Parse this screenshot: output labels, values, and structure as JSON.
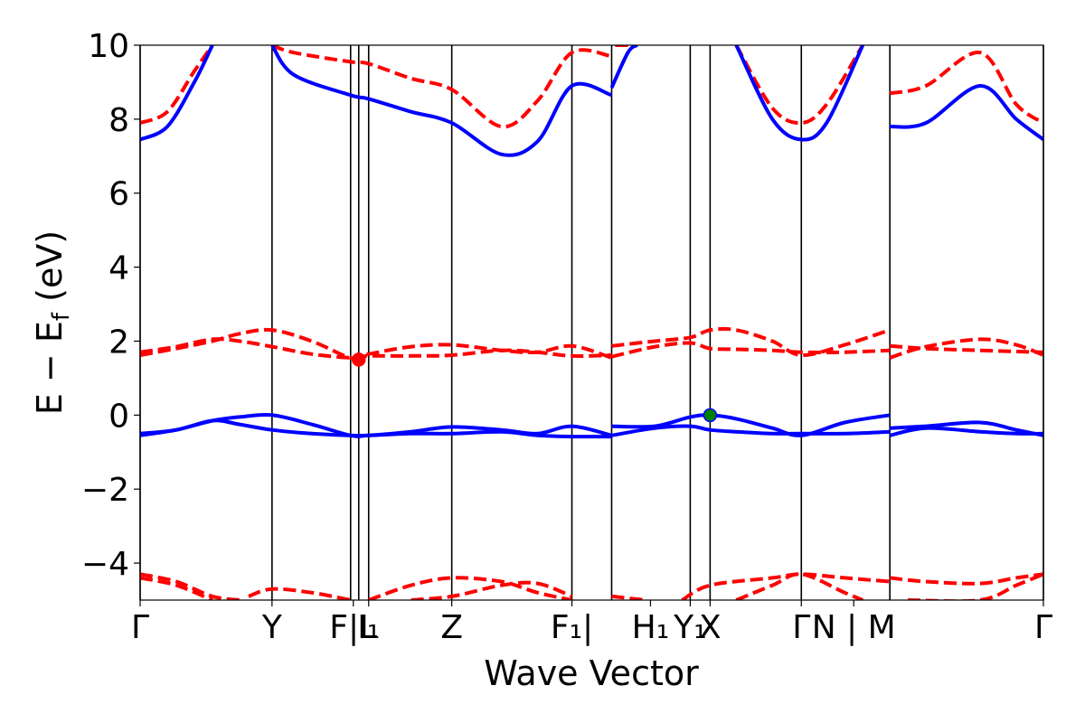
{
  "chart_data": {
    "type": "line",
    "xlabel": "Wave Vector",
    "ylabel": "E − E",
    "ylabel_sub": "f",
    "ylabel_unit": "(eV)",
    "ylim": [
      -5,
      10
    ],
    "xlim": [
      0,
      1
    ],
    "yticks": [
      -4,
      -2,
      0,
      2,
      4,
      6,
      8,
      10
    ],
    "ytick_labels": [
      "−4",
      "−2",
      "0",
      "2",
      "4",
      "6",
      "8",
      "10"
    ],
    "kpoint_positions": [
      0.0,
      0.146,
      0.233,
      0.242,
      0.253,
      0.345,
      0.478,
      0.522,
      0.609,
      0.631,
      0.732,
      0.83,
      1.0
    ],
    "kpoint_labels": [
      {
        "x": 0.0,
        "text": "Γ"
      },
      {
        "x": 0.146,
        "text": "Y"
      },
      {
        "x": 0.236,
        "text": "F|L"
      },
      {
        "x": 0.253,
        "text": "I₁"
      },
      {
        "x": 0.345,
        "text": "Z"
      },
      {
        "x": 0.478,
        "text": "F₁|"
      },
      {
        "x": 0.565,
        "text": "H₁"
      },
      {
        "x": 0.609,
        "text": "Y₁"
      },
      {
        "x": 0.631,
        "text": "X"
      },
      {
        "x": 0.732,
        "text": "Γ"
      },
      {
        "x": 0.79,
        "text": "N | M"
      },
      {
        "x": 1.0,
        "text": "Γ"
      }
    ],
    "series": [
      {
        "name": "conduction band (dashed)",
        "color": "#ff0000",
        "style": "dashed",
        "segments": [
          [
            [
              0.0,
              1.62
            ],
            [
              0.04,
              1.8
            ],
            [
              0.08,
              2.0
            ],
            [
              0.11,
              2.2
            ],
            [
              0.146,
              2.3
            ],
            [
              0.19,
              2.0
            ],
            [
              0.233,
              1.55
            ],
            [
              0.253,
              1.65
            ],
            [
              0.3,
              1.85
            ],
            [
              0.345,
              1.9
            ],
            [
              0.4,
              1.75
            ],
            [
              0.44,
              1.7
            ],
            [
              0.478,
              1.87
            ],
            [
              0.522,
              1.55
            ]
          ],
          [
            [
              0.0,
              1.7
            ],
            [
              0.04,
              1.85
            ],
            [
              0.08,
              2.05
            ],
            [
              0.11,
              2.0
            ],
            [
              0.146,
              1.85
            ],
            [
              0.19,
              1.65
            ],
            [
              0.233,
              1.55
            ],
            [
              0.253,
              1.6
            ],
            [
              0.3,
              1.6
            ],
            [
              0.345,
              1.62
            ],
            [
              0.4,
              1.75
            ],
            [
              0.44,
              1.7
            ],
            [
              0.478,
              1.6
            ],
            [
              0.522,
              1.62
            ]
          ],
          [
            [
              0.522,
              1.87
            ],
            [
              0.57,
              2.0
            ],
            [
              0.609,
              2.1
            ],
            [
              0.631,
              2.3
            ],
            [
              0.66,
              2.3
            ],
            [
              0.7,
              2.0
            ],
            [
              0.732,
              1.62
            ],
            [
              0.78,
              1.9
            ],
            [
              0.83,
              2.3
            ]
          ],
          [
            [
              0.522,
              1.58
            ],
            [
              0.57,
              1.85
            ],
            [
              0.609,
              1.95
            ],
            [
              0.631,
              1.8
            ],
            [
              0.66,
              1.78
            ],
            [
              0.7,
              1.75
            ],
            [
              0.732,
              1.7
            ],
            [
              0.78,
              1.7
            ],
            [
              0.83,
              1.75
            ]
          ],
          [
            [
              0.83,
              1.55
            ],
            [
              0.87,
              1.85
            ],
            [
              0.93,
              2.05
            ],
            [
              0.97,
              1.9
            ],
            [
              1.0,
              1.62
            ]
          ],
          [
            [
              0.83,
              1.87
            ],
            [
              0.87,
              1.8
            ],
            [
              0.93,
              1.75
            ],
            [
              0.97,
              1.72
            ],
            [
              1.0,
              1.7
            ]
          ],
          [
            [
              0.0,
              7.9
            ],
            [
              0.03,
              8.2
            ],
            [
              0.06,
              9.3
            ],
            [
              0.08,
              10.0
            ]
          ],
          [
            [
              0.146,
              10.0
            ],
            [
              0.17,
              9.8
            ],
            [
              0.233,
              9.55
            ],
            [
              0.253,
              9.5
            ],
            [
              0.3,
              9.1
            ],
            [
              0.345,
              8.8
            ],
            [
              0.4,
              7.8
            ],
            [
              0.44,
              8.5
            ],
            [
              0.478,
              9.8
            ],
            [
              0.522,
              9.7
            ]
          ],
          [
            [
              0.54,
              10.0
            ],
            [
              0.52,
              10.0
            ]
          ],
          [
            [
              0.66,
              10.0
            ],
            [
              0.7,
              8.3
            ],
            [
              0.732,
              7.9
            ],
            [
              0.76,
              8.4
            ],
            [
              0.8,
              10.0
            ]
          ],
          [
            [
              0.83,
              8.7
            ],
            [
              0.87,
              8.9
            ],
            [
              0.93,
              9.8
            ],
            [
              0.97,
              8.4
            ],
            [
              1.0,
              7.9
            ]
          ],
          [
            [
              0.0,
              -4.3
            ],
            [
              0.04,
              -4.5
            ],
            [
              0.08,
              -4.9
            ],
            [
              0.11,
              -5.0
            ]
          ],
          [
            [
              0.0,
              -4.4
            ],
            [
              0.04,
              -4.6
            ],
            [
              0.08,
              -5.0
            ]
          ],
          [
            [
              0.12,
              -4.9
            ],
            [
              0.146,
              -4.7
            ],
            [
              0.19,
              -4.8
            ],
            [
              0.233,
              -5.0
            ]
          ],
          [
            [
              0.253,
              -5.0
            ],
            [
              0.3,
              -4.6
            ],
            [
              0.345,
              -4.4
            ],
            [
              0.4,
              -4.5
            ],
            [
              0.44,
              -4.8
            ],
            [
              0.478,
              -5.0
            ]
          ],
          [
            [
              0.3,
              -5.0
            ],
            [
              0.345,
              -4.9
            ],
            [
              0.4,
              -4.6
            ],
            [
              0.44,
              -4.55
            ],
            [
              0.478,
              -4.9
            ]
          ],
          [
            [
              0.522,
              -4.9
            ],
            [
              0.56,
              -5.0
            ]
          ],
          [
            [
              0.6,
              -5.0
            ],
            [
              0.631,
              -4.6
            ],
            [
              0.7,
              -4.4
            ],
            [
              0.732,
              -4.3
            ],
            [
              0.78,
              -4.4
            ],
            [
              0.83,
              -4.5
            ]
          ],
          [
            [
              0.66,
              -5.0
            ],
            [
              0.7,
              -4.6
            ],
            [
              0.732,
              -4.3
            ],
            [
              0.78,
              -4.8
            ],
            [
              0.8,
              -5.0
            ]
          ],
          [
            [
              0.83,
              -4.4
            ],
            [
              0.87,
              -4.5
            ],
            [
              0.93,
              -4.55
            ],
            [
              0.97,
              -4.4
            ],
            [
              1.0,
              -4.3
            ]
          ],
          [
            [
              0.85,
              -5.0
            ],
            [
              0.93,
              -5.0
            ],
            [
              0.97,
              -4.6
            ],
            [
              1.0,
              -4.3
            ]
          ]
        ]
      },
      {
        "name": "valence band (solid)",
        "color": "#0000ff",
        "style": "solid",
        "segments": [
          [
            [
              0.0,
              -0.55
            ],
            [
              0.04,
              -0.4
            ],
            [
              0.08,
              -0.15
            ],
            [
              0.11,
              -0.05
            ],
            [
              0.146,
              -0.0
            ],
            [
              0.19,
              -0.25
            ],
            [
              0.233,
              -0.55
            ],
            [
              0.253,
              -0.55
            ],
            [
              0.3,
              -0.45
            ],
            [
              0.345,
              -0.32
            ],
            [
              0.4,
              -0.4
            ],
            [
              0.44,
              -0.5
            ],
            [
              0.478,
              -0.3
            ],
            [
              0.522,
              -0.55
            ]
          ],
          [
            [
              0.0,
              -0.5
            ],
            [
              0.04,
              -0.4
            ],
            [
              0.08,
              -0.15
            ],
            [
              0.11,
              -0.25
            ],
            [
              0.146,
              -0.4
            ],
            [
              0.19,
              -0.5
            ],
            [
              0.233,
              -0.55
            ],
            [
              0.253,
              -0.55
            ],
            [
              0.3,
              -0.5
            ],
            [
              0.345,
              -0.5
            ],
            [
              0.4,
              -0.45
            ],
            [
              0.44,
              -0.55
            ],
            [
              0.478,
              -0.58
            ],
            [
              0.522,
              -0.58
            ]
          ],
          [
            [
              0.522,
              -0.3
            ],
            [
              0.57,
              -0.3
            ],
            [
              0.609,
              -0.05
            ],
            [
              0.631,
              0.0
            ],
            [
              0.66,
              -0.1
            ],
            [
              0.7,
              -0.35
            ],
            [
              0.732,
              -0.55
            ],
            [
              0.78,
              -0.2
            ],
            [
              0.83,
              0.0
            ]
          ],
          [
            [
              0.522,
              -0.55
            ],
            [
              0.57,
              -0.35
            ],
            [
              0.609,
              -0.3
            ],
            [
              0.631,
              -0.4
            ],
            [
              0.66,
              -0.45
            ],
            [
              0.7,
              -0.5
            ],
            [
              0.732,
              -0.5
            ],
            [
              0.78,
              -0.5
            ],
            [
              0.83,
              -0.45
            ]
          ],
          [
            [
              0.83,
              -0.35
            ],
            [
              0.87,
              -0.3
            ],
            [
              0.93,
              -0.2
            ],
            [
              0.97,
              -0.4
            ],
            [
              1.0,
              -0.55
            ]
          ],
          [
            [
              0.83,
              -0.55
            ],
            [
              0.87,
              -0.35
            ],
            [
              0.93,
              -0.45
            ],
            [
              0.97,
              -0.5
            ],
            [
              1.0,
              -0.5
            ]
          ],
          [
            [
              0.0,
              7.45
            ],
            [
              0.03,
              7.8
            ],
            [
              0.06,
              9.0
            ],
            [
              0.08,
              10.0
            ]
          ],
          [
            [
              0.146,
              10.0
            ],
            [
              0.17,
              9.2
            ],
            [
              0.233,
              8.65
            ],
            [
              0.253,
              8.55
            ],
            [
              0.3,
              8.2
            ],
            [
              0.345,
              7.9
            ],
            [
              0.4,
              7.05
            ],
            [
              0.44,
              7.4
            ],
            [
              0.478,
              8.9
            ],
            [
              0.522,
              8.65
            ]
          ],
          [
            [
              0.522,
              8.85
            ],
            [
              0.54,
              9.8
            ],
            [
              0.55,
              10.0
            ]
          ],
          [
            [
              0.66,
              10.0
            ],
            [
              0.7,
              8.0
            ],
            [
              0.732,
              7.45
            ],
            [
              0.76,
              7.9
            ],
            [
              0.8,
              10.0
            ]
          ],
          [
            [
              0.83,
              7.8
            ],
            [
              0.87,
              7.9
            ],
            [
              0.93,
              8.9
            ],
            [
              0.97,
              8.0
            ],
            [
              1.0,
              7.45
            ]
          ]
        ]
      }
    ],
    "markers": [
      {
        "name": "conduction-band-minimum",
        "x": 0.242,
        "y": 1.5,
        "color": "#ff0000"
      },
      {
        "name": "valence-band-maximum",
        "x": 0.631,
        "y": 0.0,
        "color": "#008000"
      }
    ]
  }
}
